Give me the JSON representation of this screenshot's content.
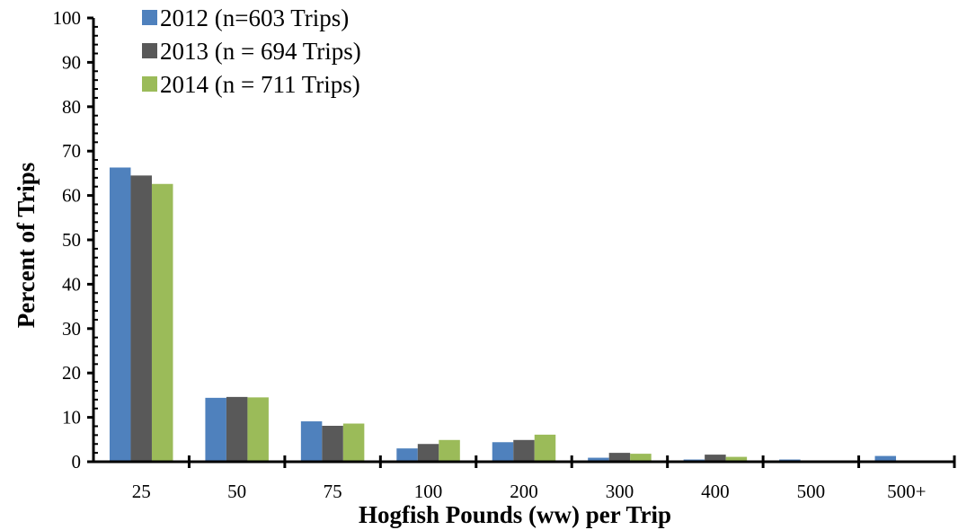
{
  "chart_data": {
    "type": "bar",
    "title": "",
    "xlabel": "Hogfish Pounds (ww) per Trip",
    "ylabel": "Percent of Trips",
    "ylim": [
      0,
      100
    ],
    "yticks": [
      "0",
      "10",
      "20",
      "30",
      "40",
      "50",
      "60",
      "70",
      "80",
      "90",
      "100"
    ],
    "categories": [
      "25",
      "50",
      "75",
      "100",
      "200",
      "300",
      "400",
      "500",
      "500+"
    ],
    "legend_position": "top-left",
    "grid": false,
    "series": [
      {
        "name": "2012 (n=603 Trips)",
        "color": "#4f81bd",
        "values": [
          66.3,
          14.4,
          9.1,
          3.0,
          4.4,
          0.9,
          0.5,
          0.5,
          1.3
        ]
      },
      {
        "name": "2013 (n = 694 Trips)",
        "color": "#595959",
        "values": [
          64.5,
          14.6,
          8.1,
          4.0,
          4.9,
          2.0,
          1.6,
          0.0,
          0.0
        ]
      },
      {
        "name": "2014 (n = 711 Trips)",
        "color": "#9bbb59",
        "values": [
          62.6,
          14.5,
          8.6,
          4.9,
          6.1,
          1.8,
          1.1,
          0.0,
          0.0
        ]
      }
    ]
  }
}
